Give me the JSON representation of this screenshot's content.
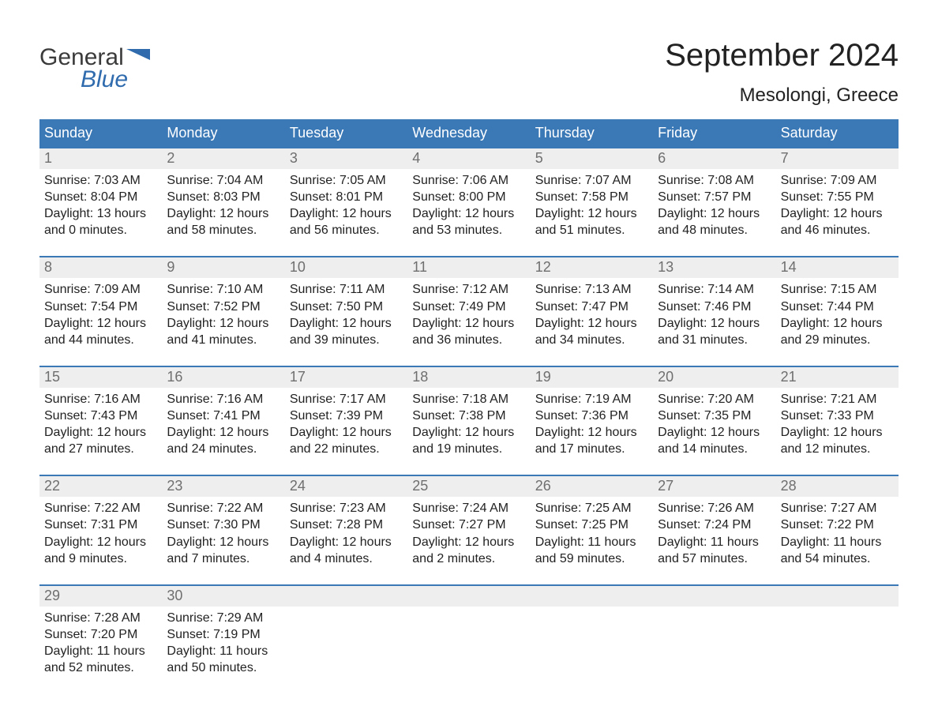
{
  "colors": {
    "header_bg": "#3a78b6",
    "header_text": "#ffffff",
    "daynum_bg": "#eeeeee",
    "daynum_text": "#6f6f6f",
    "body_text": "#222222",
    "week_border": "#3a78b6",
    "logo_gray": "#3b3b3b",
    "logo_blue": "#2f6bad",
    "page_bg": "#ffffff"
  },
  "typography": {
    "title_fontsize": 40,
    "location_fontsize": 24,
    "weekday_fontsize": 18,
    "daynum_fontsize": 18,
    "body_fontsize": 16,
    "logo_fontsize": 30,
    "font_family": "Arial"
  },
  "layout": {
    "columns": 7,
    "rows": 5,
    "type": "calendar"
  },
  "logo": {
    "line1": "General",
    "line2": "Blue",
    "flag_color": "#2f6bad"
  },
  "title": "September 2024",
  "location": "Mesolongi, Greece",
  "weekdays": [
    "Sunday",
    "Monday",
    "Tuesday",
    "Wednesday",
    "Thursday",
    "Friday",
    "Saturday"
  ],
  "labels": {
    "sunrise_prefix": "Sunrise: ",
    "sunset_prefix": "Sunset: ",
    "daylight_prefix": "Daylight: ",
    "daylight_join": " and ",
    "daylight_suffix": "."
  },
  "days": [
    {
      "n": 1,
      "sunrise": "7:03 AM",
      "sunset": "8:04 PM",
      "dl_h": "13 hours",
      "dl_m": "0 minutes"
    },
    {
      "n": 2,
      "sunrise": "7:04 AM",
      "sunset": "8:03 PM",
      "dl_h": "12 hours",
      "dl_m": "58 minutes"
    },
    {
      "n": 3,
      "sunrise": "7:05 AM",
      "sunset": "8:01 PM",
      "dl_h": "12 hours",
      "dl_m": "56 minutes"
    },
    {
      "n": 4,
      "sunrise": "7:06 AM",
      "sunset": "8:00 PM",
      "dl_h": "12 hours",
      "dl_m": "53 minutes"
    },
    {
      "n": 5,
      "sunrise": "7:07 AM",
      "sunset": "7:58 PM",
      "dl_h": "12 hours",
      "dl_m": "51 minutes"
    },
    {
      "n": 6,
      "sunrise": "7:08 AM",
      "sunset": "7:57 PM",
      "dl_h": "12 hours",
      "dl_m": "48 minutes"
    },
    {
      "n": 7,
      "sunrise": "7:09 AM",
      "sunset": "7:55 PM",
      "dl_h": "12 hours",
      "dl_m": "46 minutes"
    },
    {
      "n": 8,
      "sunrise": "7:09 AM",
      "sunset": "7:54 PM",
      "dl_h": "12 hours",
      "dl_m": "44 minutes"
    },
    {
      "n": 9,
      "sunrise": "7:10 AM",
      "sunset": "7:52 PM",
      "dl_h": "12 hours",
      "dl_m": "41 minutes"
    },
    {
      "n": 10,
      "sunrise": "7:11 AM",
      "sunset": "7:50 PM",
      "dl_h": "12 hours",
      "dl_m": "39 minutes"
    },
    {
      "n": 11,
      "sunrise": "7:12 AM",
      "sunset": "7:49 PM",
      "dl_h": "12 hours",
      "dl_m": "36 minutes"
    },
    {
      "n": 12,
      "sunrise": "7:13 AM",
      "sunset": "7:47 PM",
      "dl_h": "12 hours",
      "dl_m": "34 minutes"
    },
    {
      "n": 13,
      "sunrise": "7:14 AM",
      "sunset": "7:46 PM",
      "dl_h": "12 hours",
      "dl_m": "31 minutes"
    },
    {
      "n": 14,
      "sunrise": "7:15 AM",
      "sunset": "7:44 PM",
      "dl_h": "12 hours",
      "dl_m": "29 minutes"
    },
    {
      "n": 15,
      "sunrise": "7:16 AM",
      "sunset": "7:43 PM",
      "dl_h": "12 hours",
      "dl_m": "27 minutes"
    },
    {
      "n": 16,
      "sunrise": "7:16 AM",
      "sunset": "7:41 PM",
      "dl_h": "12 hours",
      "dl_m": "24 minutes"
    },
    {
      "n": 17,
      "sunrise": "7:17 AM",
      "sunset": "7:39 PM",
      "dl_h": "12 hours",
      "dl_m": "22 minutes"
    },
    {
      "n": 18,
      "sunrise": "7:18 AM",
      "sunset": "7:38 PM",
      "dl_h": "12 hours",
      "dl_m": "19 minutes"
    },
    {
      "n": 19,
      "sunrise": "7:19 AM",
      "sunset": "7:36 PM",
      "dl_h": "12 hours",
      "dl_m": "17 minutes"
    },
    {
      "n": 20,
      "sunrise": "7:20 AM",
      "sunset": "7:35 PM",
      "dl_h": "12 hours",
      "dl_m": "14 minutes"
    },
    {
      "n": 21,
      "sunrise": "7:21 AM",
      "sunset": "7:33 PM",
      "dl_h": "12 hours",
      "dl_m": "12 minutes"
    },
    {
      "n": 22,
      "sunrise": "7:22 AM",
      "sunset": "7:31 PM",
      "dl_h": "12 hours",
      "dl_m": "9 minutes"
    },
    {
      "n": 23,
      "sunrise": "7:22 AM",
      "sunset": "7:30 PM",
      "dl_h": "12 hours",
      "dl_m": "7 minutes"
    },
    {
      "n": 24,
      "sunrise": "7:23 AM",
      "sunset": "7:28 PM",
      "dl_h": "12 hours",
      "dl_m": "4 minutes"
    },
    {
      "n": 25,
      "sunrise": "7:24 AM",
      "sunset": "7:27 PM",
      "dl_h": "12 hours",
      "dl_m": "2 minutes"
    },
    {
      "n": 26,
      "sunrise": "7:25 AM",
      "sunset": "7:25 PM",
      "dl_h": "11 hours",
      "dl_m": "59 minutes"
    },
    {
      "n": 27,
      "sunrise": "7:26 AM",
      "sunset": "7:24 PM",
      "dl_h": "11 hours",
      "dl_m": "57 minutes"
    },
    {
      "n": 28,
      "sunrise": "7:27 AM",
      "sunset": "7:22 PM",
      "dl_h": "11 hours",
      "dl_m": "54 minutes"
    },
    {
      "n": 29,
      "sunrise": "7:28 AM",
      "sunset": "7:20 PM",
      "dl_h": "11 hours",
      "dl_m": "52 minutes"
    },
    {
      "n": 30,
      "sunrise": "7:29 AM",
      "sunset": "7:19 PM",
      "dl_h": "11 hours",
      "dl_m": "50 minutes"
    }
  ],
  "trailing_empty": 5
}
